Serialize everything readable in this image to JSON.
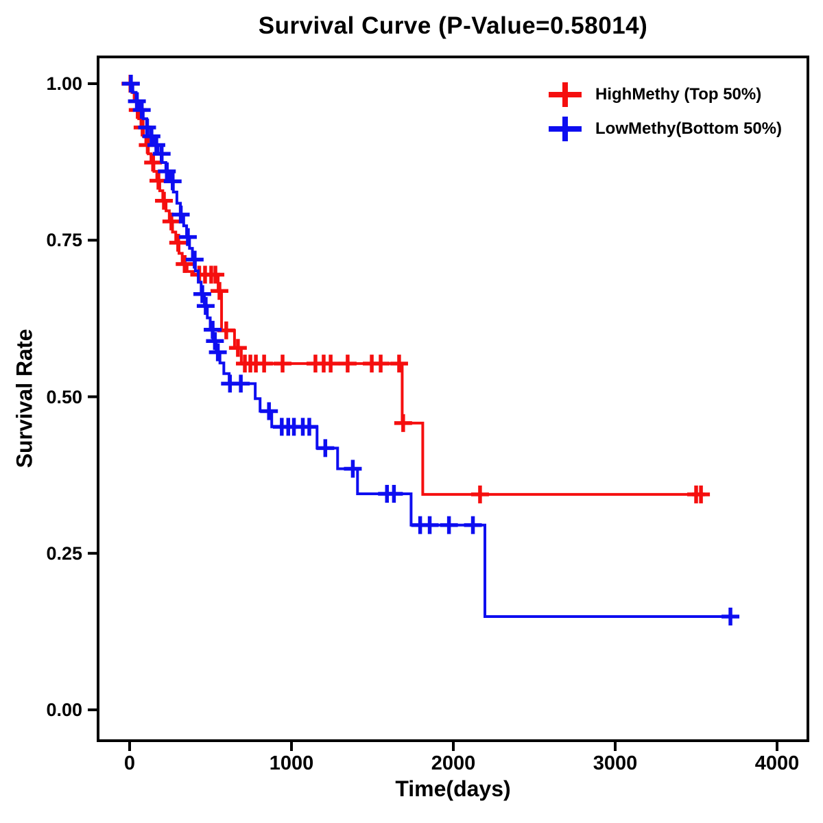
{
  "chart_data": {
    "type": "line",
    "subtype": "kaplan-meier-step",
    "title": "Survival Curve (P-Value=0.58014)",
    "p_value": "0.58014",
    "xlabel": "Time(days)",
    "ylabel": "Survival Rate",
    "x_tick_labels": [
      "0",
      "1000",
      "2000",
      "3000",
      "4000"
    ],
    "x_tick_values": [
      0,
      1000,
      2000,
      3000,
      4000
    ],
    "y_tick_labels": [
      "1.00",
      "0.75",
      "0.50",
      "0.25",
      "0.00"
    ],
    "y_tick_values": [
      1.0,
      0.75,
      0.5,
      0.25,
      0.0
    ],
    "xlim": [
      -195,
      4190
    ],
    "ylim": [
      0,
      1
    ],
    "grid": false,
    "legend_position": "top-right",
    "frame_color": "#000000",
    "background_color": "#ffffff",
    "series": [
      {
        "name": "HighMethy (Top 50%)",
        "color": "#f50f0f",
        "end_time": 3560,
        "steps": [
          [
            0,
            1.0
          ],
          [
            14,
            0.986
          ],
          [
            28,
            0.972
          ],
          [
            42,
            0.958
          ],
          [
            56,
            0.944
          ],
          [
            70,
            0.93
          ],
          [
            85,
            0.916
          ],
          [
            100,
            0.902
          ],
          [
            115,
            0.888
          ],
          [
            132,
            0.874
          ],
          [
            150,
            0.86
          ],
          [
            168,
            0.845
          ],
          [
            186,
            0.829
          ],
          [
            205,
            0.813
          ],
          [
            225,
            0.797
          ],
          [
            245,
            0.78
          ],
          [
            265,
            0.763
          ],
          [
            285,
            0.746
          ],
          [
            305,
            0.729
          ],
          [
            325,
            0.712
          ],
          [
            355,
            0.7
          ],
          [
            395,
            0.695
          ],
          [
            547,
            0.669
          ],
          [
            568,
            0.606
          ],
          [
            648,
            0.578
          ],
          [
            690,
            0.553
          ],
          [
            1684,
            0.458
          ],
          [
            1811,
            0.344
          ]
        ],
        "censor_times": [
          5,
          50,
          80,
          112,
          145,
          178,
          212,
          258,
          300,
          340,
          430,
          466,
          504,
          530,
          555,
          597,
          669,
          712,
          746,
          780,
          831,
          945,
          1148,
          1199,
          1242,
          1347,
          1496,
          1551,
          1665,
          1690,
          2165,
          3500,
          3530
        ]
      },
      {
        "name": "LowMethy(Bottom 50%)",
        "color": "#0e0ef0",
        "end_time": 3763,
        "steps": [
          [
            0,
            1.0
          ],
          [
            20,
            0.986
          ],
          [
            40,
            0.972
          ],
          [
            62,
            0.958
          ],
          [
            84,
            0.944
          ],
          [
            106,
            0.93
          ],
          [
            128,
            0.916
          ],
          [
            152,
            0.902
          ],
          [
            176,
            0.888
          ],
          [
            200,
            0.874
          ],
          [
            224,
            0.86
          ],
          [
            248,
            0.844
          ],
          [
            270,
            0.827
          ],
          [
            292,
            0.809
          ],
          [
            314,
            0.791
          ],
          [
            334,
            0.773
          ],
          [
            352,
            0.755
          ],
          [
            370,
            0.737
          ],
          [
            388,
            0.719
          ],
          [
            406,
            0.701
          ],
          [
            424,
            0.683
          ],
          [
            442,
            0.664
          ],
          [
            462,
            0.645
          ],
          [
            480,
            0.626
          ],
          [
            498,
            0.607
          ],
          [
            515,
            0.589
          ],
          [
            535,
            0.571
          ],
          [
            558,
            0.554
          ],
          [
            582,
            0.537
          ],
          [
            615,
            0.521
          ],
          [
            776,
            0.497
          ],
          [
            806,
            0.477
          ],
          [
            878,
            0.452
          ],
          [
            1158,
            0.418
          ],
          [
            1285,
            0.385
          ],
          [
            1408,
            0.345
          ],
          [
            1739,
            0.295
          ],
          [
            2195,
            0.149
          ]
        ],
        "censor_times": [
          8,
          45,
          75,
          108,
          135,
          165,
          198,
          230,
          266,
          316,
          360,
          402,
          449,
          470,
          513,
          527,
          545,
          620,
          687,
          861,
          940,
          980,
          1015,
          1070,
          1110,
          1209,
          1379,
          1590,
          1633,
          1795,
          1854,
          1973,
          2121,
          3712
        ]
      }
    ]
  }
}
